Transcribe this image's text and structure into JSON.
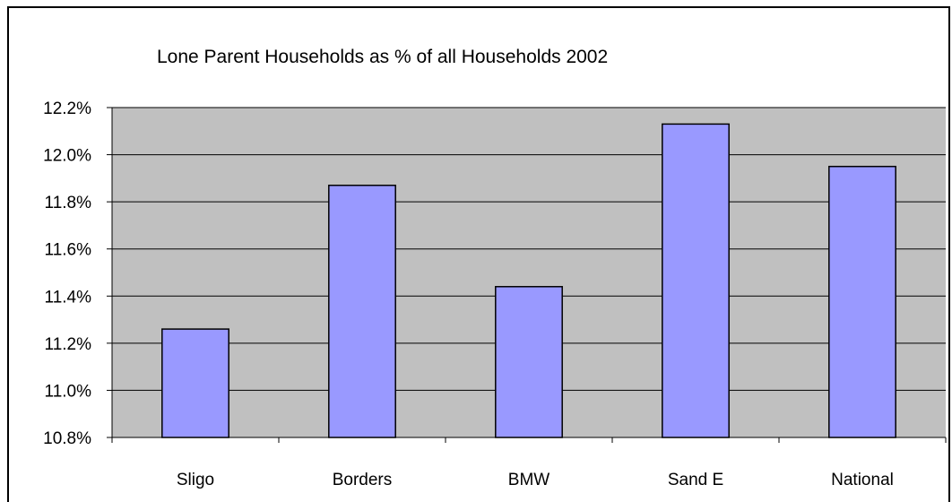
{
  "chart_data": {
    "type": "bar",
    "title": "Lone Parent Households as % of all Households 2002",
    "categories": [
      "Sligo",
      "Borders",
      "BMW",
      "Sand E",
      "National"
    ],
    "values": [
      11.26,
      11.87,
      11.44,
      12.13,
      11.95
    ],
    "ylim": [
      10.8,
      12.2
    ],
    "y_ticks": [
      10.8,
      11.0,
      11.2,
      11.4,
      11.6,
      11.8,
      12.0,
      12.2
    ],
    "y_tick_labels": [
      "10.8%",
      "11.0%",
      "11.2%",
      "11.4%",
      "11.6%",
      "11.8%",
      "12.0%",
      "12.2%"
    ],
    "xlabel": "",
    "ylabel": "",
    "grid": true,
    "legend": "none",
    "colors": {
      "plot_background": "#c0c0c0",
      "bar_fill": "#9999ff",
      "bar_stroke": "#000000",
      "gridline": "#000000"
    }
  }
}
